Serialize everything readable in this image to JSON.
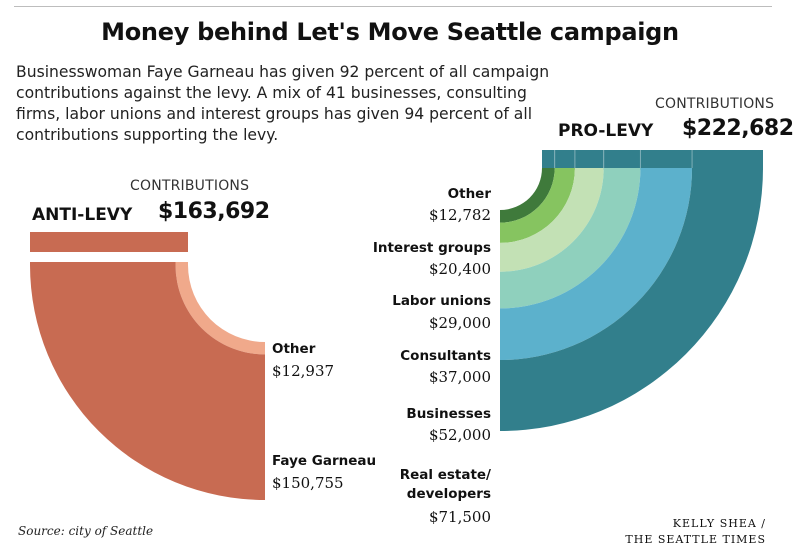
{
  "title": "Money behind Let's Move Seattle campaign",
  "subtitle": "Businesswoman Faye Garneau has given 92 percent of all campaign contributions against the levy. A mix of 41 businesses, consulting firms, labor unions and interest groups has given 94 percent of all contributions supporting the levy.",
  "source": "Source: city of Seattle",
  "credit_line1": "KELLY SHEA /",
  "credit_line2": "THE SEATTLE TIMES",
  "chart_data": [
    {
      "type": "sankey",
      "side": "ANTI-LEVY",
      "total_label": "CONTRIBUTIONS",
      "total": 163692,
      "total_display": "$163,692",
      "categories": [
        {
          "name": "Other",
          "value": 12937,
          "display": "$12,937",
          "color": "#f0a98b"
        },
        {
          "name": "Faye Garneau",
          "value": 150755,
          "display": "$150,755",
          "color": "#c86b52"
        }
      ]
    },
    {
      "type": "sankey",
      "side": "PRO-LEVY",
      "total_label": "CONTRIBUTIONS",
      "total": 222682,
      "total_display": "$222,682",
      "categories": [
        {
          "name": "Other",
          "value": 12782,
          "display": "$12,782",
          "color": "#3f7a3b"
        },
        {
          "name": "Interest groups",
          "value": 20400,
          "display": "$20,400",
          "color": "#86c460"
        },
        {
          "name": "Labor unions",
          "value": 29000,
          "display": "$29,000",
          "color": "#c3e1b5"
        },
        {
          "name": "Consultants",
          "value": 37000,
          "display": "$37,000",
          "color": "#8fd0bd"
        },
        {
          "name": "Businesses",
          "value": 52000,
          "display": "$52,000",
          "color": "#5cb1cc"
        },
        {
          "name": "Real estate/ developers",
          "value": 71500,
          "display": "$71,500",
          "color": "#327f8c"
        }
      ]
    }
  ]
}
